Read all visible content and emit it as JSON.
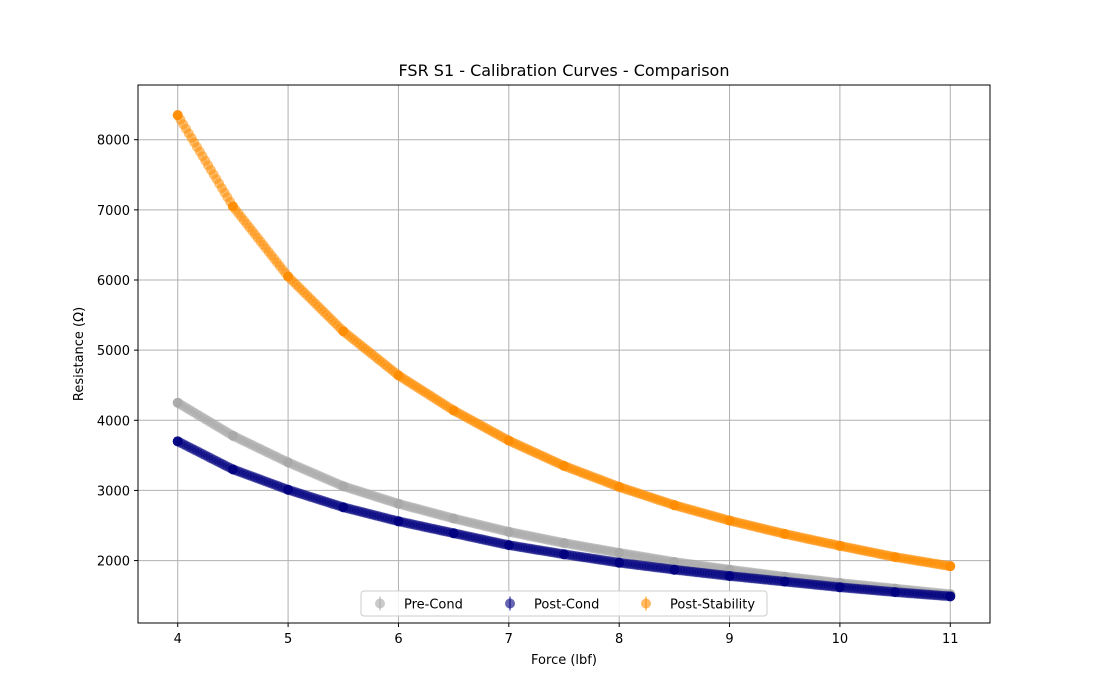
{
  "chart_data": {
    "type": "scatter",
    "title": "FSR S1 - Calibration Curves - Comparison",
    "xlabel": "Force (lbf)",
    "ylabel": "Resistance (Ω)",
    "xlim": [
      3.64,
      11.36
    ],
    "ylim": [
      1110,
      8780
    ],
    "xticks": [
      4,
      5,
      6,
      7,
      8,
      9,
      10,
      11
    ],
    "yticks": [
      2000,
      3000,
      4000,
      5000,
      6000,
      7000,
      8000
    ],
    "grid": true,
    "legend_position": "lower-center",
    "series": [
      {
        "name": "Pre-Cond",
        "color": "#a9a9a9",
        "x": [
          4.0,
          4.5,
          5.0,
          5.5,
          6.0,
          6.5,
          7.0,
          7.5,
          8.0,
          8.5,
          9.0,
          9.5,
          10.0,
          10.5,
          11.0
        ],
        "y": [
          4250,
          3780,
          3400,
          3060,
          2810,
          2600,
          2410,
          2250,
          2110,
          1980,
          1870,
          1770,
          1680,
          1600,
          1520
        ]
      },
      {
        "name": "Post-Cond",
        "color": "#00007f",
        "x": [
          4.0,
          4.5,
          5.0,
          5.5,
          6.0,
          6.5,
          7.0,
          7.5,
          8.0,
          8.5,
          9.0,
          9.5,
          10.0,
          10.5,
          11.0
        ],
        "y": [
          3700,
          3300,
          3010,
          2760,
          2560,
          2390,
          2220,
          2090,
          1970,
          1870,
          1780,
          1700,
          1620,
          1550,
          1490
        ]
      },
      {
        "name": "Post-Stability",
        "color": "#ff8c00",
        "x": [
          4.0,
          4.5,
          5.0,
          5.5,
          6.0,
          6.5,
          7.0,
          7.5,
          8.0,
          8.5,
          9.0,
          9.5,
          10.0,
          10.5,
          11.0
        ],
        "y": [
          8350,
          7050,
          6050,
          5270,
          4640,
          4140,
          3710,
          3350,
          3050,
          2790,
          2570,
          2380,
          2210,
          2050,
          1920
        ]
      }
    ]
  }
}
